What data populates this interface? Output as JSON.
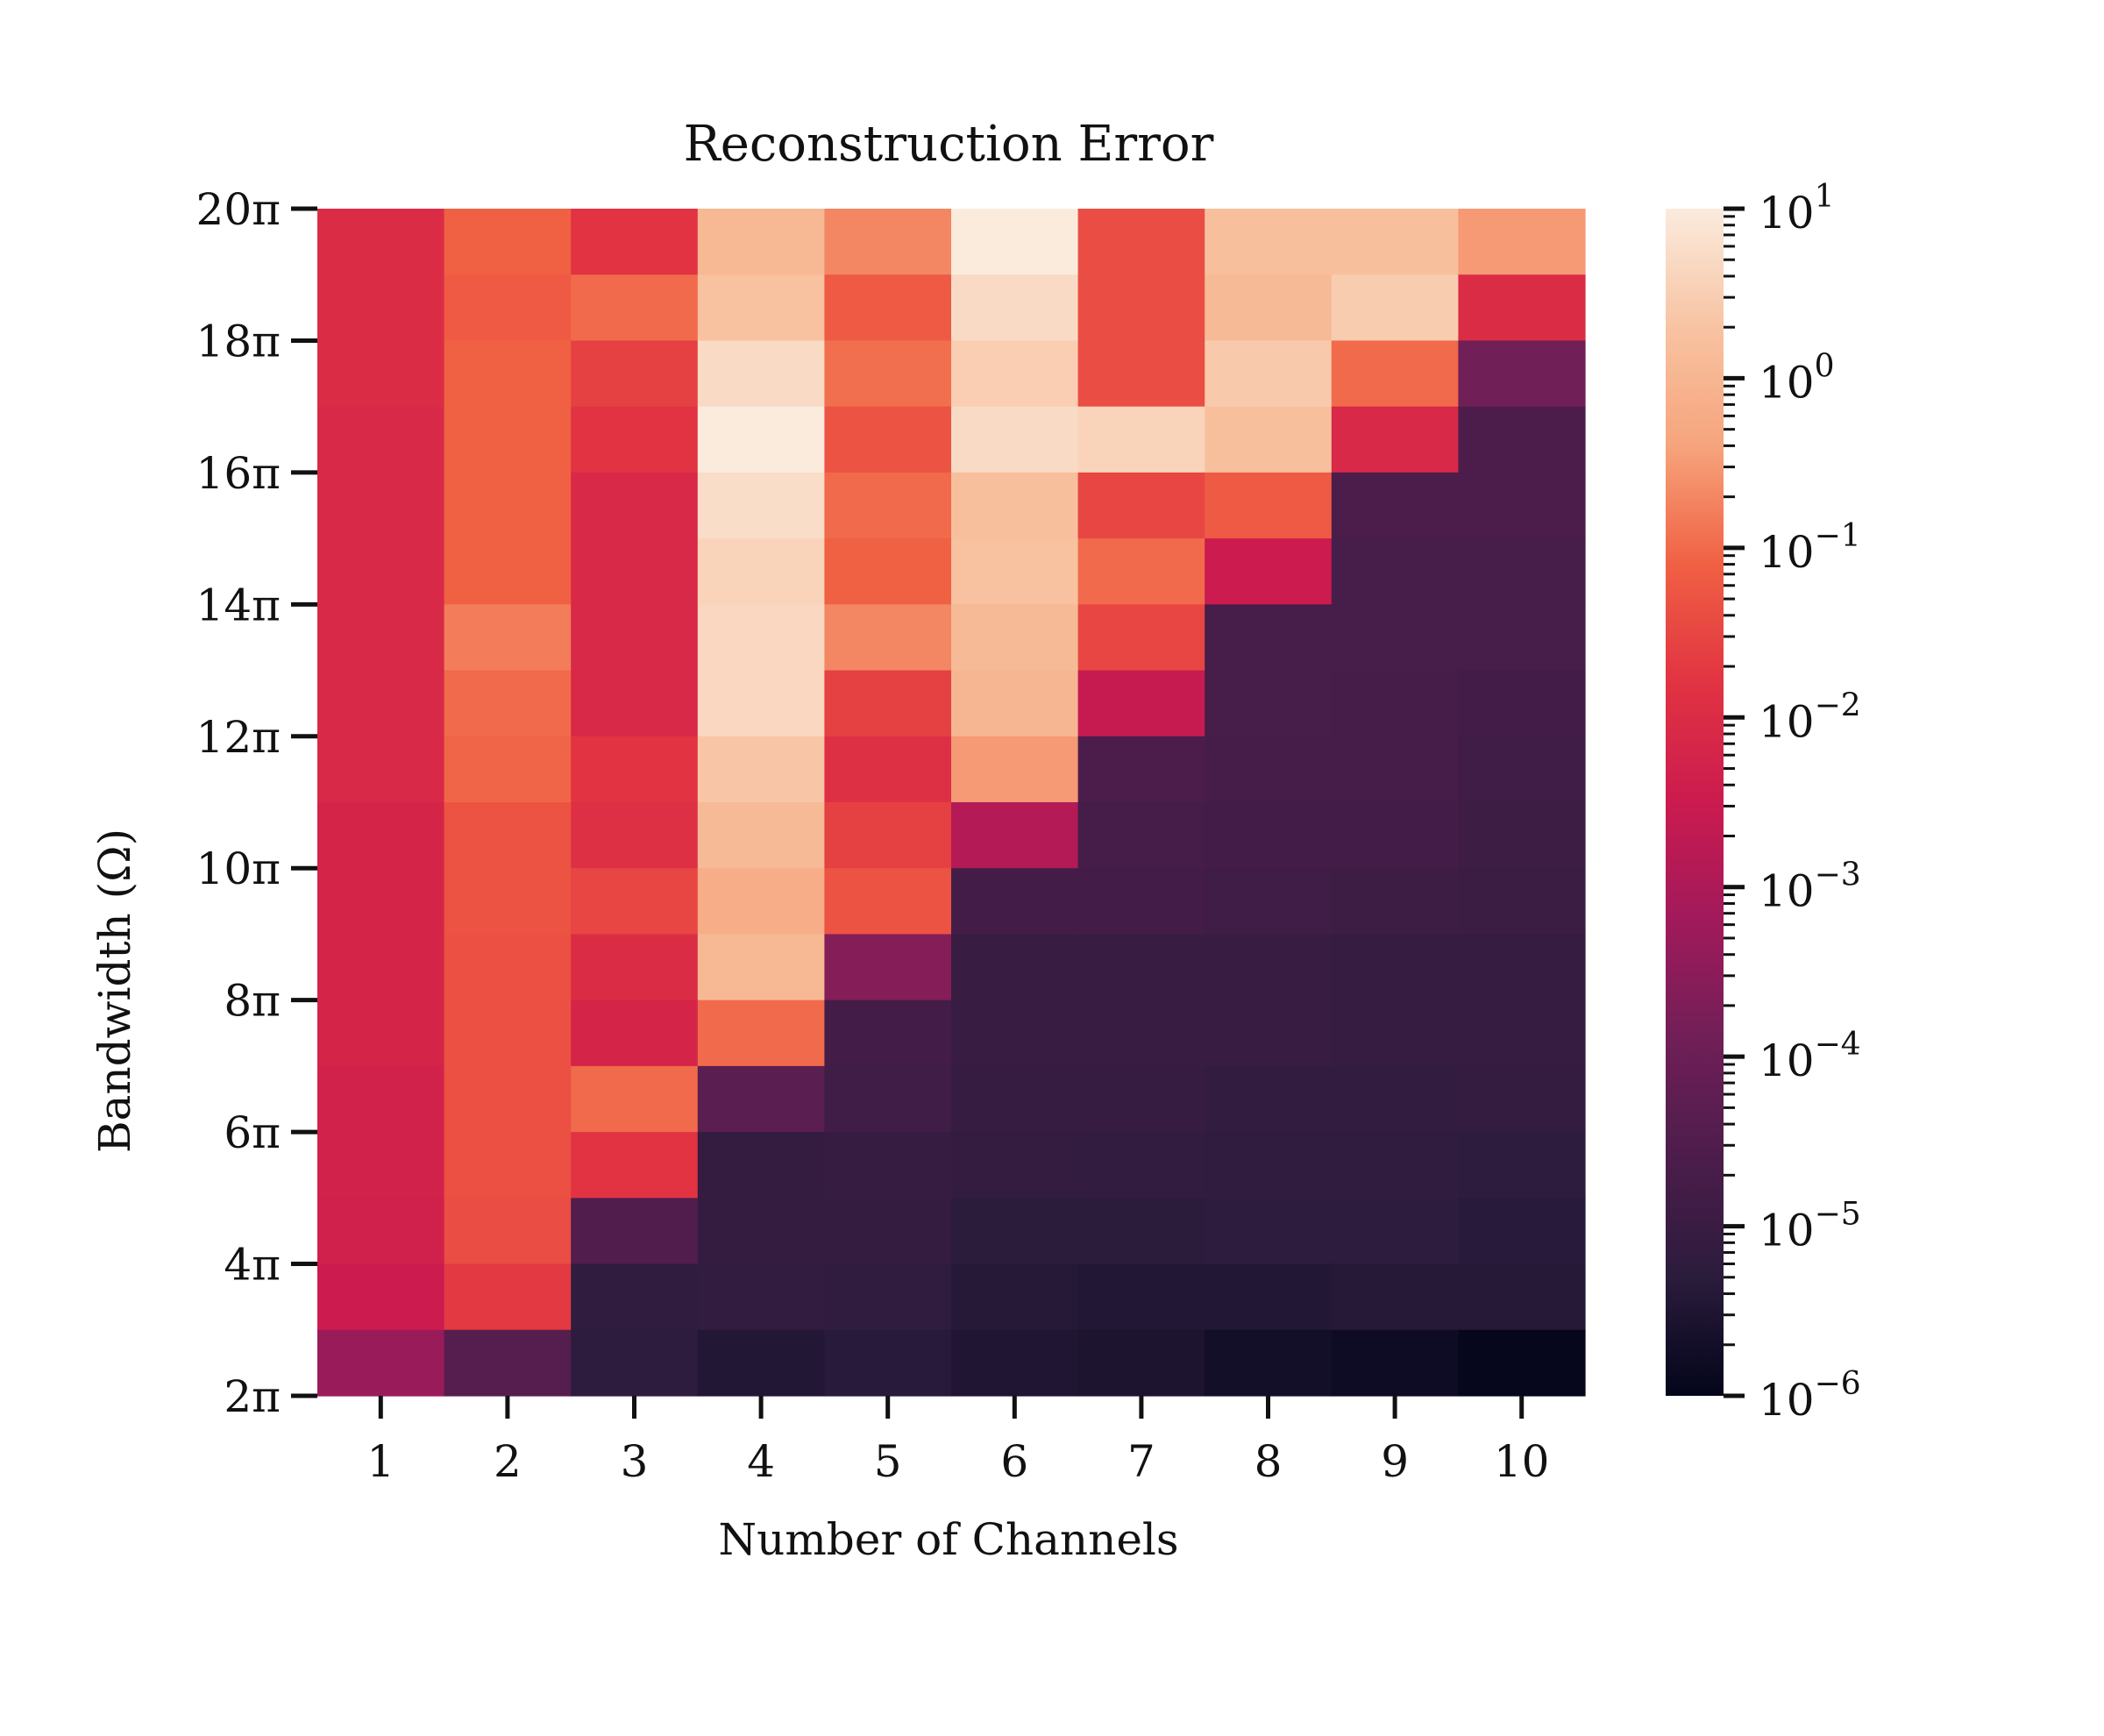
{
  "chart_data": {
    "type": "heatmap",
    "title": "Reconstruction Error",
    "xlabel": "Number of Channels",
    "ylabel": "Bandwidth (Ω)",
    "x_categories": [
      "1",
      "2",
      "3",
      "4",
      "5",
      "6",
      "7",
      "8",
      "9",
      "10"
    ],
    "y_rows_top_to_bottom": [
      "19.5π",
      "18.5π",
      "17.5π",
      "16.5π",
      "15.5π",
      "14.5π",
      "13.5π",
      "12.5π",
      "11.5π",
      "10.5π",
      "9.5π",
      "8.5π",
      "7.5π",
      "6.5π",
      "5.5π",
      "4.5π",
      "3.5π",
      "2.5π"
    ],
    "y_tick_labels": [
      "20π",
      "18π",
      "16π",
      "14π",
      "12π",
      "10π",
      "8π",
      "6π",
      "4π",
      "2π"
    ],
    "y_range": [
      "2π",
      "20π"
    ],
    "colorbar": {
      "scale": "log",
      "range": [
        1e-06,
        10
      ],
      "tick_labels": [
        {
          "base": "10",
          "exp": "1"
        },
        {
          "base": "10",
          "exp": "0"
        },
        {
          "base": "10",
          "exp": "−1"
        },
        {
          "base": "10",
          "exp": "−2"
        },
        {
          "base": "10",
          "exp": "−3"
        },
        {
          "base": "10",
          "exp": "−4"
        },
        {
          "base": "10",
          "exp": "−5"
        },
        {
          "base": "10",
          "exp": "−6"
        }
      ],
      "colormap": "rocket",
      "stops": [
        "#03051a",
        "#2b1c3c",
        "#4c1d4b",
        "#701f57",
        "#a11a5b",
        "#cb1b4f",
        "#e13342",
        "#f06043",
        "#f6a47c",
        "#f8c3a2",
        "#faebdd"
      ]
    },
    "grid": false,
    "legend": "colorbar-right",
    "log10_values": [
      [
        -2.0,
        -1.1,
        -1.8,
        0.05,
        -0.7,
        1.0,
        -1.4,
        0.2,
        0.2,
        -0.5
      ],
      [
        -2.0,
        -1.2,
        -1.0,
        0.25,
        -1.2,
        0.7,
        -1.4,
        0.1,
        0.45,
        -2.0
      ],
      [
        -2.0,
        -1.1,
        -1.6,
        0.7,
        -0.95,
        0.5,
        -1.4,
        0.4,
        -1.0,
        -3.9
      ],
      [
        -2.1,
        -1.1,
        -1.8,
        1.0,
        -1.3,
        0.7,
        0.6,
        0.2,
        -2.1,
        -4.6
      ],
      [
        -2.1,
        -1.1,
        -2.1,
        0.75,
        -1.0,
        0.2,
        -1.5,
        -1.2,
        -4.6,
        -4.6
      ],
      [
        -2.1,
        -1.1,
        -2.1,
        0.6,
        -1.1,
        0.25,
        -1.0,
        -2.5,
        -4.7,
        -4.7
      ],
      [
        -2.1,
        -0.8,
        -2.1,
        0.65,
        -0.7,
        0.1,
        -1.5,
        -4.7,
        -4.7,
        -4.7
      ],
      [
        -2.1,
        -1.0,
        -2.1,
        0.65,
        -1.6,
        0.0,
        -2.6,
        -4.7,
        -4.75,
        -4.8
      ],
      [
        -2.1,
        -1.05,
        -1.8,
        0.35,
        -1.9,
        -0.5,
        -4.6,
        -4.75,
        -4.75,
        -4.85
      ],
      [
        -2.2,
        -1.3,
        -1.9,
        0.1,
        -1.6,
        -2.9,
        -4.75,
        -4.8,
        -4.8,
        -4.9
      ],
      [
        -2.2,
        -1.3,
        -1.5,
        -0.2,
        -1.3,
        -4.8,
        -4.8,
        -4.85,
        -4.9,
        -4.95
      ],
      [
        -2.2,
        -1.35,
        -2.0,
        0.05,
        -3.6,
        -5.0,
        -5.0,
        -5.0,
        -5.05,
        -5.05
      ],
      [
        -2.2,
        -1.35,
        -2.2,
        -1.0,
        -4.8,
        -5.0,
        -5.0,
        -5.0,
        -5.05,
        -5.05
      ],
      [
        -2.3,
        -1.35,
        -1.0,
        -4.3,
        -4.85,
        -5.05,
        -5.05,
        -5.15,
        -5.15,
        -5.1
      ],
      [
        -2.3,
        -1.35,
        -1.8,
        -5.1,
        -5.05,
        -5.1,
        -5.15,
        -5.2,
        -5.2,
        -5.25
      ],
      [
        -2.35,
        -1.4,
        -4.5,
        -5.1,
        -5.1,
        -5.3,
        -5.3,
        -5.25,
        -5.25,
        -5.35
      ],
      [
        -2.5,
        -1.7,
        -5.2,
        -5.15,
        -5.2,
        -5.4,
        -5.45,
        -5.45,
        -5.4,
        -5.4
      ],
      [
        -3.3,
        -4.4,
        -5.25,
        -5.45,
        -5.35,
        -5.5,
        -5.55,
        -5.7,
        -5.8,
        -5.95
      ]
    ]
  }
}
